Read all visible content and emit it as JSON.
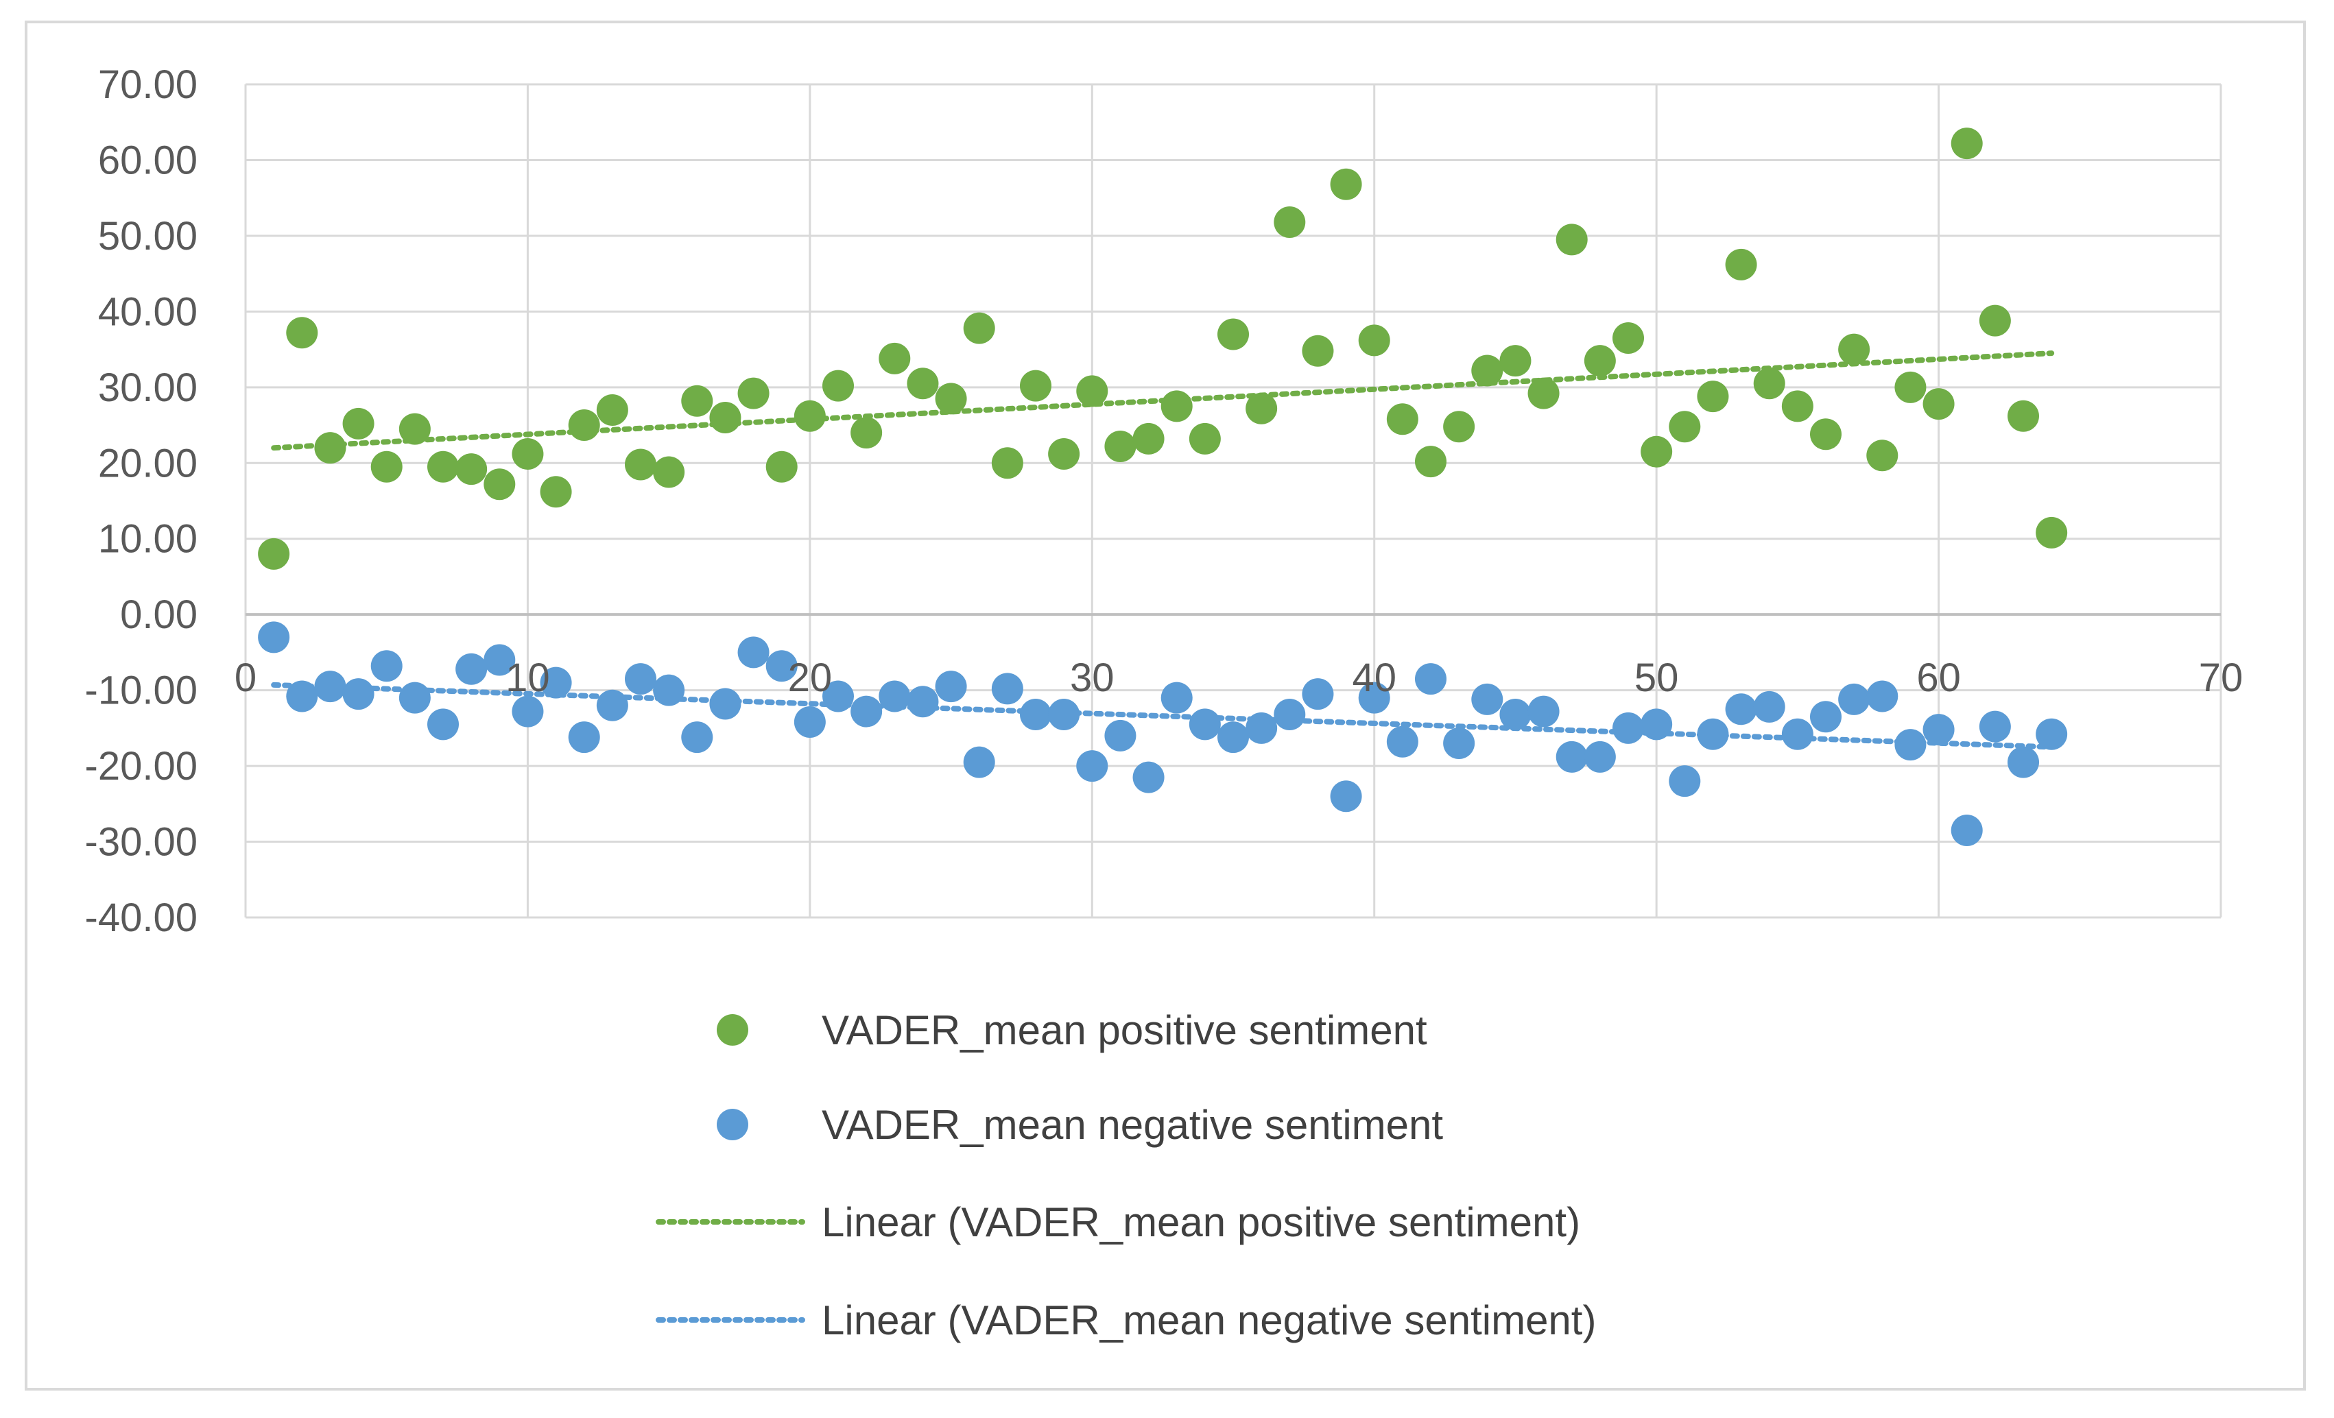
{
  "chart_data": {
    "type": "scatter",
    "title": "",
    "xlabel": "",
    "ylabel": "",
    "xlim": [
      0,
      70
    ],
    "ylim": [
      -40,
      70
    ],
    "x_ticks": [
      0,
      10,
      20,
      30,
      40,
      50,
      60,
      70
    ],
    "y_ticks": [
      70,
      60,
      50,
      40,
      30,
      20,
      10,
      0,
      -10,
      -20,
      -30,
      -40
    ],
    "y_tick_labels": [
      "70.00",
      "60.00",
      "50.00",
      "40.00",
      "30.00",
      "20.00",
      "10.00",
      "0.00",
      "-10.00",
      "-20.00",
      "-30.00",
      "-40.00"
    ],
    "x_tick_labels": [
      "0",
      "10",
      "20",
      "30",
      "40",
      "50",
      "60",
      "70"
    ],
    "grid": true,
    "legend_position": "bottom",
    "x": [
      1,
      2,
      3,
      4,
      5,
      6,
      7,
      8,
      9,
      10,
      11,
      12,
      13,
      14,
      15,
      16,
      17,
      18,
      19,
      20,
      21,
      22,
      23,
      24,
      25,
      26,
      27,
      28,
      29,
      30,
      31,
      32,
      33,
      34,
      35,
      36,
      37,
      38,
      39,
      40,
      41,
      42,
      43,
      44,
      45,
      46,
      47,
      48,
      49,
      50,
      51,
      52,
      53,
      54,
      55,
      56,
      57,
      58,
      59,
      60,
      61,
      62,
      63,
      64
    ],
    "series": [
      {
        "name": "VADER_mean positive sentiment",
        "color": "#70ad47",
        "values": [
          8.0,
          37.2,
          22.0,
          25.2,
          19.5,
          24.5,
          19.5,
          19.2,
          17.2,
          21.2,
          16.2,
          25.0,
          27.0,
          19.8,
          18.8,
          28.2,
          26.0,
          29.2,
          19.5,
          26.2,
          30.2,
          24.0,
          33.8,
          30.5,
          28.5,
          37.8,
          20.0,
          30.2,
          21.2,
          29.5,
          22.2,
          23.2,
          27.5,
          23.2,
          37.0,
          27.2,
          51.8,
          34.8,
          56.8,
          36.2,
          25.8,
          20.2,
          24.8,
          32.2,
          33.5,
          29.2,
          49.5,
          33.5,
          36.5,
          21.5,
          24.8,
          28.8,
          46.2,
          30.5,
          27.5,
          23.8,
          35.0,
          21.0,
          30.0,
          27.8,
          62.2,
          38.8,
          26.2,
          10.8
        ]
      },
      {
        "name": "VADER_mean negative sentiment",
        "color": "#5b9bd5",
        "values": [
          -3.0,
          -10.8,
          -9.5,
          -10.5,
          -6.8,
          -11.0,
          -14.5,
          -7.2,
          -6.0,
          -12.8,
          -9.0,
          -16.2,
          -12.0,
          -8.5,
          -10.0,
          -16.2,
          -11.8,
          -5.0,
          -6.8,
          -14.2,
          -10.8,
          -12.8,
          -10.8,
          -11.5,
          -9.5,
          -19.5,
          -9.8,
          -13.2,
          -13.2,
          -20.0,
          -16.0,
          -21.5,
          -11.0,
          -14.5,
          -16.2,
          -15.0,
          -13.2,
          -10.5,
          -24.0,
          -11.0,
          -16.8,
          -8.5,
          -17.0,
          -11.2,
          -13.2,
          -12.8,
          -18.8,
          -18.8,
          -15.0,
          -14.5,
          -22.0,
          -15.8,
          -12.5,
          -12.2,
          -15.8,
          -13.5,
          -11.2,
          -10.8,
          -17.2,
          -15.2,
          -28.5,
          -14.8,
          -19.5,
          -15.8
        ]
      }
    ],
    "trendlines": [
      {
        "name": "Linear (VADER_mean positive sentiment)",
        "type": "linear",
        "color": "#70ad47",
        "x_range": [
          1,
          64
        ],
        "y_range": [
          22.0,
          34.5
        ]
      },
      {
        "name": "Linear (VADER_mean negative sentiment)",
        "type": "linear",
        "color": "#5b9bd5",
        "x_range": [
          1,
          64
        ],
        "y_range": [
          -9.3,
          -17.5
        ]
      }
    ]
  }
}
